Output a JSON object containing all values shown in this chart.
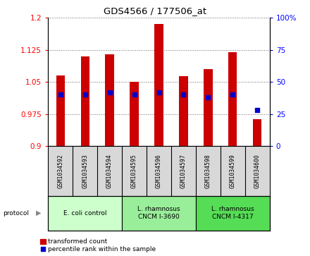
{
  "title": "GDS4566 / 177506_at",
  "samples": [
    "GSM1034592",
    "GSM1034593",
    "GSM1034594",
    "GSM1034595",
    "GSM1034596",
    "GSM1034597",
    "GSM1034598",
    "GSM1034599",
    "GSM1034600"
  ],
  "transformed_count": [
    1.065,
    1.11,
    1.115,
    1.05,
    1.185,
    1.063,
    1.08,
    1.12,
    0.963
  ],
  "percentile_rank": [
    40,
    40,
    42,
    40,
    42,
    40,
    38,
    40,
    28
  ],
  "ylim_left": [
    0.9,
    1.2
  ],
  "ylim_right": [
    0,
    100
  ],
  "yticks_left": [
    0.9,
    0.975,
    1.05,
    1.125,
    1.2
  ],
  "yticks_right": [
    0,
    25,
    50,
    75,
    100
  ],
  "bar_color": "#cc0000",
  "dot_color": "#0000cc",
  "bar_width": 0.35,
  "protocols": [
    {
      "label": "E. coli control",
      "start": 0,
      "end": 3,
      "color": "#ccffcc"
    },
    {
      "label": "L. rhamnosus\nCNCM I-3690",
      "start": 3,
      "end": 6,
      "color": "#99ee99"
    },
    {
      "label": "L. rhamnosus\nCNCM I-4317",
      "start": 6,
      "end": 9,
      "color": "#55dd55"
    }
  ],
  "legend_bar_label": "transformed count",
  "legend_dot_label": "percentile rank within the sample",
  "protocol_label": "protocol",
  "plot_bg_color": "#ffffff",
  "sample_box_color": "#d8d8d8",
  "grid_linestyle": ":"
}
